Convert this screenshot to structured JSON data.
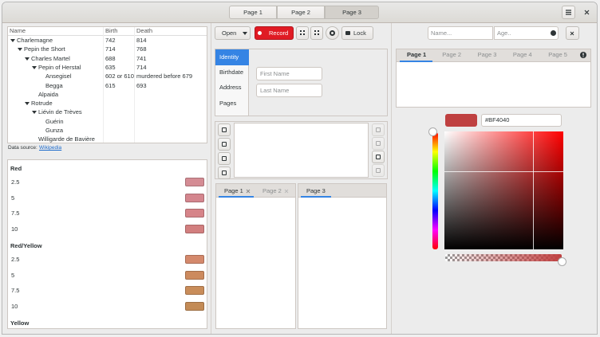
{
  "header": {
    "tabs": [
      "Page 1",
      "Page 2",
      "Page 3"
    ],
    "active": 2
  },
  "tree": {
    "columns": [
      "Name",
      "Birth",
      "Death"
    ],
    "rows": [
      {
        "name": "Charlemagne",
        "birth": 742,
        "death": 814,
        "children": [
          {
            "name": "Pepin the Short",
            "birth": 714,
            "death": 768,
            "children": [
              {
                "name": "Charles Martel",
                "birth": 688,
                "death": 741,
                "children": [
                  {
                    "name": "Pepin of Herstal",
                    "birth": 635,
                    "death": 714,
                    "children": [
                      {
                        "name": "Ansegisel",
                        "birth": "602 or 610",
                        "death": "murdered before 679"
                      },
                      {
                        "name": "Begga",
                        "birth": 615,
                        "death": 693
                      }
                    ]
                  },
                  {
                    "name": "Alpaida"
                  }
                ]
              },
              {
                "name": "Rotrude",
                "children": [
                  {
                    "name": "Liévin de Trèves",
                    "children": [
                      {
                        "name": "Guérin"
                      },
                      {
                        "name": "Gunza"
                      }
                    ]
                  },
                  {
                    "name": "Willigarde de Bavière"
                  }
                ]
              }
            ]
          }
        ]
      }
    ]
  },
  "source": {
    "prefix": "Data source:",
    "link": "Wikipedia"
  },
  "colors": {
    "groups": [
      {
        "name": "Red",
        "items": [
          {
            "label": 2.5,
            "color": "#d48c94"
          },
          {
            "label": 5,
            "color": "#d4868e"
          },
          {
            "label": 7.5,
            "color": "#d68489"
          },
          {
            "label": 10,
            "color": "#d27f7f"
          }
        ]
      },
      {
        "name": "Red/Yellow",
        "items": [
          {
            "label": 2.5,
            "color": "#d4896c"
          },
          {
            "label": 5,
            "color": "#cc8a5e"
          },
          {
            "label": 7.5,
            "color": "#c98d5a"
          },
          {
            "label": 10,
            "color": "#c38b56"
          }
        ]
      },
      {
        "name": "Yellow",
        "items": []
      }
    ]
  },
  "toolbar": {
    "open": "Open",
    "record": "Record",
    "lock": "Lock"
  },
  "form": {
    "tabs": [
      "Identity",
      "Birthdate",
      "Address",
      "Pages"
    ],
    "active": 0,
    "fields": [
      "First Name",
      "Last Name"
    ]
  },
  "notebooks": [
    {
      "tabs": [
        "Page 1",
        "Page 2"
      ],
      "active": 0
    },
    {
      "tabs": [
        "Page 3"
      ],
      "active": 0
    }
  ],
  "right": {
    "entries": [
      "Name...",
      "Age.."
    ],
    "tabs": [
      "Page 1",
      "Page 2",
      "Page 3",
      "Page 4",
      "Page 5"
    ],
    "active": 0,
    "color": "#BF4040"
  }
}
